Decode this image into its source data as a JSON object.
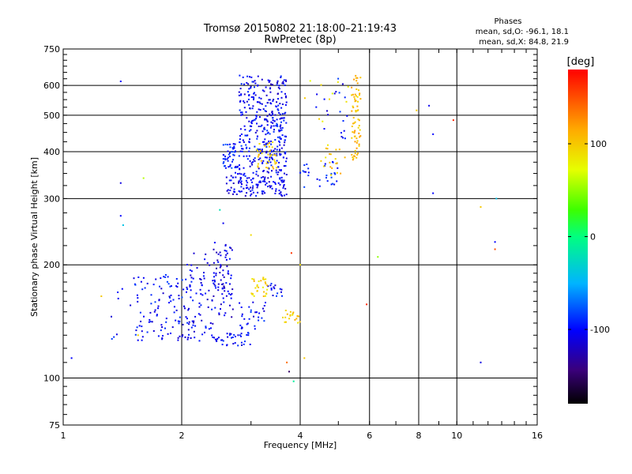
{
  "chart_data": {
    "type": "scatter",
    "title": "Tromsø 20150802 21:18:00–21:19:43",
    "subtitle": "RwPretec (8p)",
    "xlabel": "Frequency [MHz]",
    "ylabel": "Stationary phase Virtual Height [km]",
    "x_scale": "log",
    "y_scale": "log",
    "xlim": [
      1,
      16
    ],
    "ylim": [
      75,
      750
    ],
    "x_ticks": [
      1,
      2,
      4,
      6,
      8,
      10,
      16
    ],
    "x_tick_labels": [
      "1",
      "2",
      "4",
      "6",
      "8",
      "10",
      "16"
    ],
    "y_ticks": [
      75,
      100,
      200,
      300,
      400,
      500,
      600,
      750
    ],
    "y_tick_labels": [
      "75",
      "100",
      "200",
      "300",
      "400",
      "500",
      "600",
      "750"
    ],
    "grid": true,
    "stats": {
      "heading": "Phases",
      "line_o": "mean, sd,O: -96.1, 18.1",
      "line_x": "mean, sd,X: 84.8, 21.9"
    },
    "colorbar": {
      "label": "[deg]",
      "ticks": [
        100,
        0,
        -100
      ],
      "tick_labels": [
        "100",
        "0",
        "-100"
      ],
      "range": [
        -180,
        180
      ]
    },
    "series": [
      {
        "clusters": [
          {
            "f": [
              2.6,
              3.7
            ],
            "h": [
              305,
              345
            ],
            "phase": -105,
            "n": 120
          },
          {
            "f": [
              2.7,
              3.7
            ],
            "h": [
              345,
              420
            ],
            "phase": -100,
            "n": 130
          },
          {
            "f": [
              2.55,
              2.75
            ],
            "h": [
              360,
              420
            ],
            "phase": -90,
            "n": 40
          },
          {
            "f": [
              2.8,
              3.7
            ],
            "h": [
              420,
              520
            ],
            "phase": -100,
            "n": 140
          },
          {
            "f": [
              2.8,
              3.7
            ],
            "h": [
              520,
              640
            ],
            "phase": -105,
            "n": 110
          },
          {
            "f": [
              4.0,
              5.0
            ],
            "h": [
              320,
              380
            ],
            "phase": -95,
            "n": 30
          },
          {
            "f": [
              4.3,
              5.3
            ],
            "h": [
              430,
              630
            ],
            "phase": -100,
            "n": 20
          },
          {
            "f": [
              1.5,
              2.15
            ],
            "h": [
              125,
              190
            ],
            "phase": -100,
            "n": 110
          },
          {
            "f": [
              2.05,
              2.4
            ],
            "h": [
              125,
              215
            ],
            "phase": -105,
            "n": 70
          },
          {
            "f": [
              2.4,
              2.7
            ],
            "h": [
              145,
              230
            ],
            "phase": -110,
            "n": 80
          },
          {
            "f": [
              2.35,
              3.0
            ],
            "h": [
              122,
              132
            ],
            "phase": -100,
            "n": 40
          },
          {
            "f": [
              2.8,
              3.3
            ],
            "h": [
              135,
              160
            ],
            "phase": -100,
            "n": 30
          },
          {
            "f": [
              3.3,
              3.6
            ],
            "h": [
              165,
              180
            ],
            "phase": -100,
            "n": 15
          },
          {
            "f": [
              1.3,
              1.6
            ],
            "h": [
              120,
              180
            ],
            "phase": -100,
            "n": 10
          }
        ]
      },
      {
        "clusters": [
          {
            "f": [
              5.4,
              5.7
            ],
            "h": [
              380,
              640
            ],
            "phase": 105,
            "n": 70
          },
          {
            "f": [
              3.1,
              3.5
            ],
            "h": [
              360,
              430
            ],
            "phase": 100,
            "n": 35
          },
          {
            "f": [
              4.5,
              5.3
            ],
            "h": [
              345,
              420
            ],
            "phase": 100,
            "n": 20
          },
          {
            "f": [
              3.0,
              3.3
            ],
            "h": [
              165,
              185
            ],
            "phase": 95,
            "n": 30
          },
          {
            "f": [
              3.6,
              4.0
            ],
            "h": [
              140,
              152
            ],
            "phase": 100,
            "n": 20
          },
          {
            "f": [
              4.0,
              5.5
            ],
            "h": [
              480,
              620
            ],
            "phase": 85,
            "n": 10
          }
        ]
      },
      {
        "points": [
          {
            "x": 1.05,
            "y": 113,
            "phase": -100
          },
          {
            "x": 1.4,
            "y": 615,
            "phase": -100
          },
          {
            "x": 1.4,
            "y": 330,
            "phase": -110
          },
          {
            "x": 1.4,
            "y": 270,
            "phase": -100
          },
          {
            "x": 1.42,
            "y": 255,
            "phase": -40
          },
          {
            "x": 1.6,
            "y": 340,
            "phase": 60
          },
          {
            "x": 1.25,
            "y": 165,
            "phase": 100
          },
          {
            "x": 1.55,
            "y": 130,
            "phase": 95
          },
          {
            "x": 2.5,
            "y": 280,
            "phase": -20
          },
          {
            "x": 2.55,
            "y": 258,
            "phase": -105
          },
          {
            "x": 3.0,
            "y": 240,
            "phase": 90
          },
          {
            "x": 3.8,
            "y": 215,
            "phase": 160
          },
          {
            "x": 4.0,
            "y": 200,
            "phase": 90
          },
          {
            "x": 3.7,
            "y": 110,
            "phase": 140
          },
          {
            "x": 3.75,
            "y": 104,
            "phase": -150
          },
          {
            "x": 4.1,
            "y": 113,
            "phase": 100
          },
          {
            "x": 3.85,
            "y": 98,
            "phase": -10
          },
          {
            "x": 5.9,
            "y": 157,
            "phase": 165
          },
          {
            "x": 6.3,
            "y": 210,
            "phase": 50
          },
          {
            "x": 7.9,
            "y": 515,
            "phase": 100
          },
          {
            "x": 8.5,
            "y": 530,
            "phase": -105
          },
          {
            "x": 8.7,
            "y": 445,
            "phase": -100
          },
          {
            "x": 8.7,
            "y": 310,
            "phase": -100
          },
          {
            "x": 9.8,
            "y": 485,
            "phase": 165
          },
          {
            "x": 11.5,
            "y": 110,
            "phase": -110
          },
          {
            "x": 11.5,
            "y": 285,
            "phase": 100
          },
          {
            "x": 12.5,
            "y": 230,
            "phase": -100
          },
          {
            "x": 12.5,
            "y": 220,
            "phase": 150
          },
          {
            "x": 12.6,
            "y": 300,
            "phase": -40
          }
        ]
      }
    ]
  }
}
